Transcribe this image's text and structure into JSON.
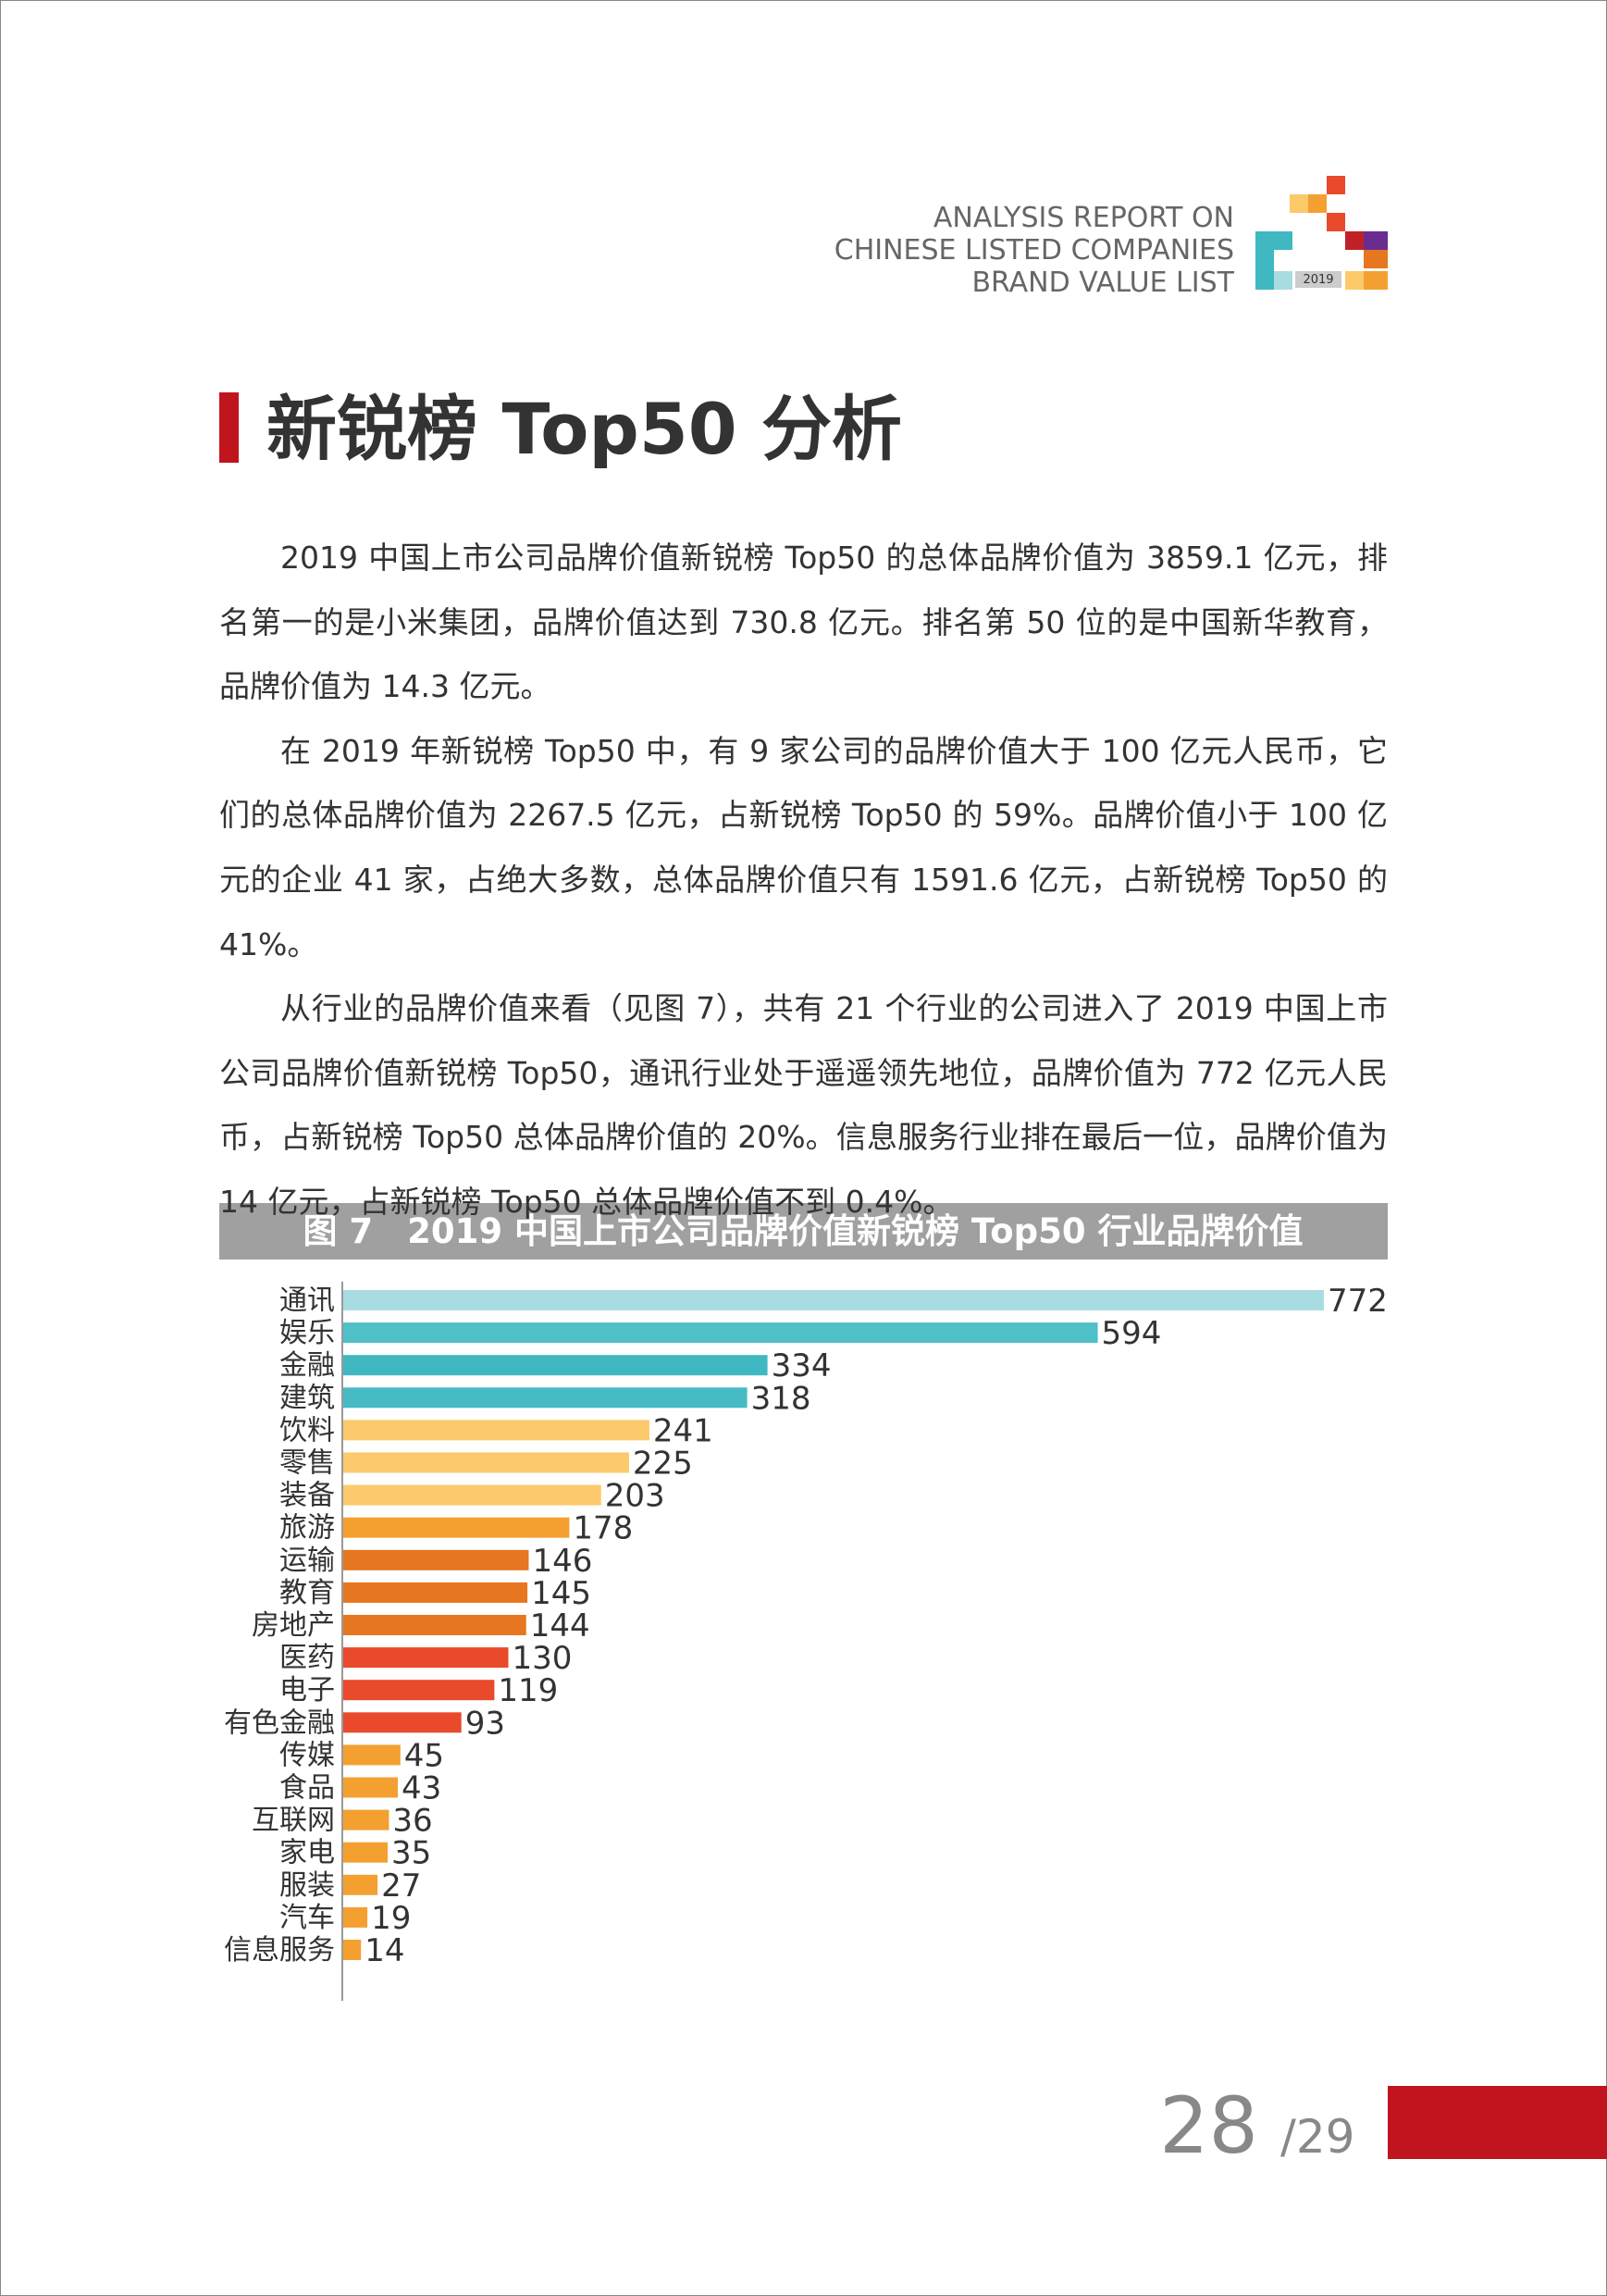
{
  "header": {
    "lines": [
      "ANALYSIS REPORT ON",
      "CHINESE LISTED COMPANIES",
      "BRAND VALUE LIST"
    ],
    "logo_year": "2019"
  },
  "section_title": "新锐榜 Top50 分析",
  "paragraphs": [
    "2019 中国上市公司品牌价值新锐榜 Top50 的总体品牌价值为 3859.1 亿元，排名第一的是小米集团，品牌价值达到 730.8 亿元。排名第 50 位的是中国新华教育，品牌价值为 14.3 亿元。",
    "在 2019 年新锐榜 Top50 中，有 9 家公司的品牌价值大于 100 亿元人民币，它们的总体品牌价值为 2267.5 亿元，占新锐榜 Top50 的 59%。品牌价值小于 100 亿元的企业 41 家，占绝大多数，总体品牌价值只有 1591.6 亿元，占新锐榜 Top50 的 41%。",
    "从行业的品牌价值来看（见图 7），共有 21 个行业的公司进入了 2019 中国上市公司品牌价值新锐榜 Top50，通讯行业处于遥遥领先地位，品牌价值为 772 亿元人民币，占新锐榜 Top50 总体品牌价值的 20%。信息服务行业排在最后一位，品牌价值为 14 亿元，占新锐榜 Top50 总体品牌价值不到 0.4%。"
  ],
  "chart_data": {
    "type": "barh",
    "title": "图 7　2019 中国上市公司品牌价值新锐榜 Top50 行业品牌价值",
    "categories": [
      "通讯",
      "娱乐",
      "金融",
      "建筑",
      "饮料",
      "零售",
      "装备",
      "旅游",
      "运输",
      "教育",
      "房地产",
      "医药",
      "电子",
      "有色金融",
      "传媒",
      "食品",
      "互联网",
      "家电",
      "服装",
      "汽车",
      "信息服务"
    ],
    "values": [
      772,
      594,
      334,
      318,
      241,
      225,
      203,
      178,
      146,
      145,
      144,
      130,
      119,
      93,
      45,
      43,
      36,
      35,
      27,
      19,
      14
    ],
    "colors": [
      "#a9dce2",
      "#4fbfc8",
      "#3fb8c2",
      "#46bbc4",
      "#fcc96b",
      "#fcc96b",
      "#fcc96b",
      "#f4a031",
      "#e6761f",
      "#e6761f",
      "#e6761f",
      "#e84a2b",
      "#e84a2b",
      "#e84a2b",
      "#f4a031",
      "#f4a031",
      "#f4a031",
      "#f4a031",
      "#f4a031",
      "#f4a031",
      "#f4a031"
    ]
  },
  "page": {
    "current": "28",
    "total": "/29"
  }
}
